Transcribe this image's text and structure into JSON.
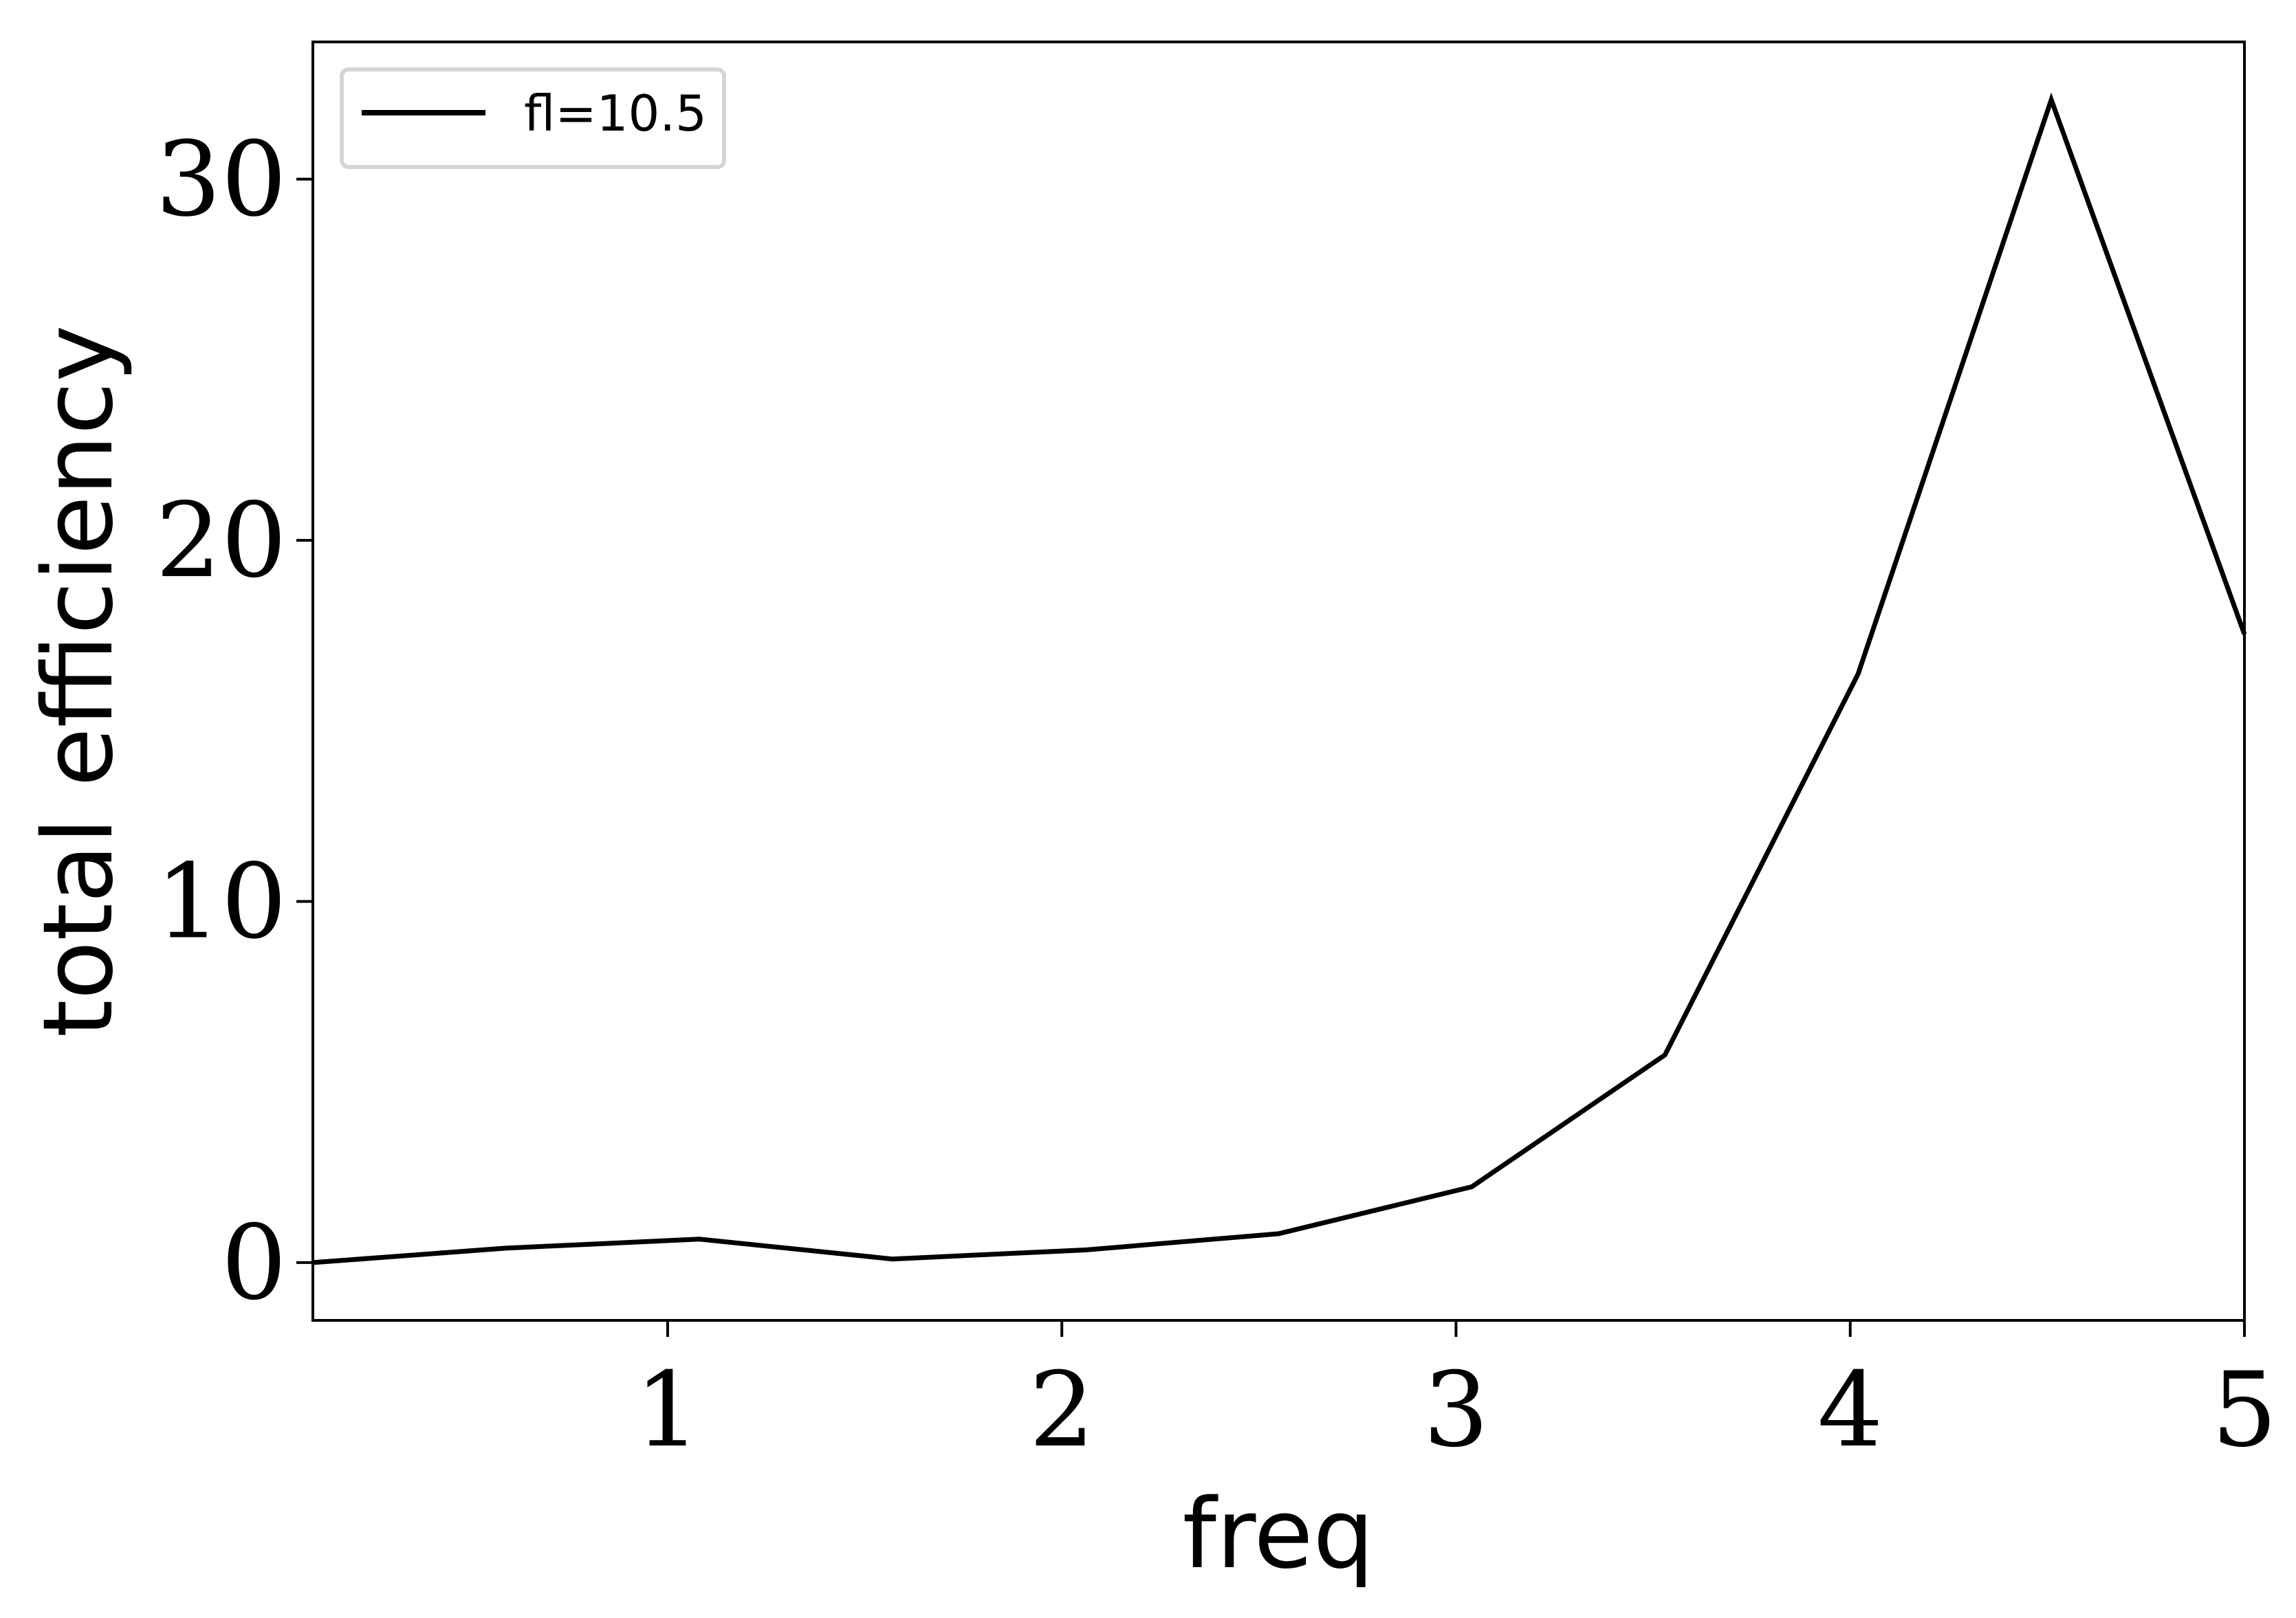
{
  "chart_data": {
    "type": "line",
    "title": "",
    "xlabel": "freq",
    "ylabel": "total efficiency",
    "xlim": [
      0.1,
      5.0
    ],
    "ylim": [
      -1.6,
      33.8
    ],
    "xticks": [
      1,
      2,
      3,
      4,
      5
    ],
    "yticks": [
      0,
      10,
      20,
      30
    ],
    "grid": false,
    "legend_position": "top-left",
    "series": [
      {
        "name": "fl=10.5",
        "color": "#000000",
        "x": [
          0.1,
          0.59,
          1.08,
          1.57,
          2.06,
          2.55,
          3.04,
          3.53,
          4.02,
          4.51,
          5.0
        ],
        "y": [
          0.0,
          0.4,
          0.65,
          0.1,
          0.35,
          0.8,
          2.1,
          5.75,
          16.3,
          32.2,
          17.4
        ]
      }
    ]
  }
}
